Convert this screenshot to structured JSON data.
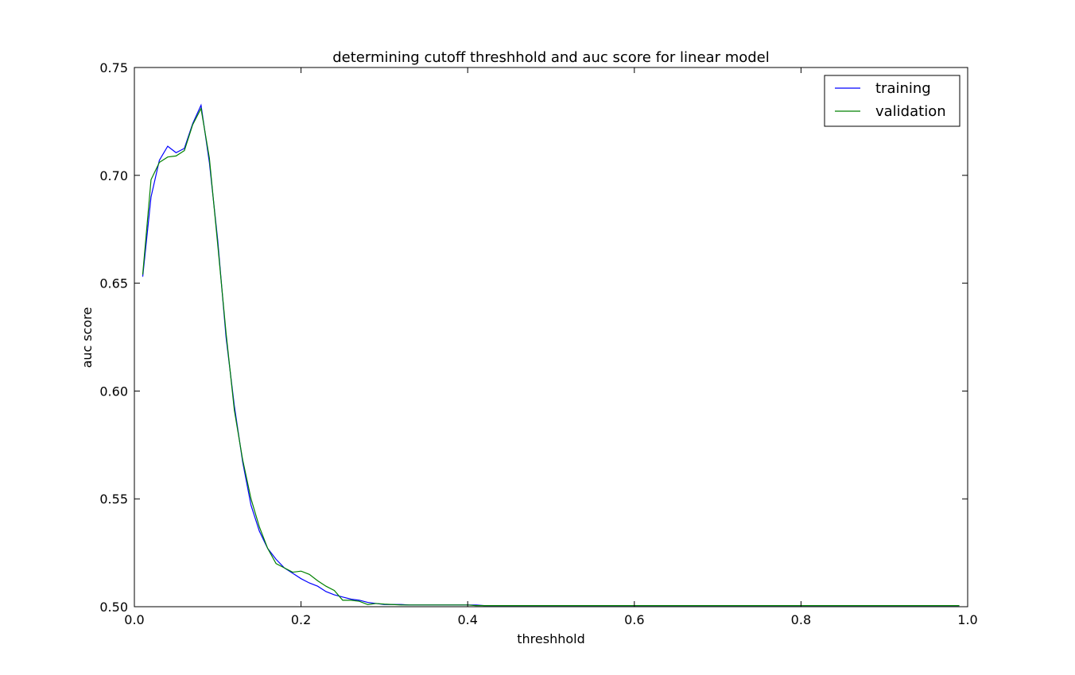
{
  "chart_data": {
    "type": "line",
    "title": "determining cutoff threshhold and auc score for linear model",
    "xlabel": "threshhold",
    "ylabel": "auc score",
    "xlim": [
      0.0,
      1.0
    ],
    "ylim": [
      0.5,
      0.75
    ],
    "xticks": [
      "0.0",
      "0.2",
      "0.4",
      "0.6",
      "0.8",
      "1.0"
    ],
    "yticks": [
      "0.50",
      "0.55",
      "0.60",
      "0.65",
      "0.70",
      "0.75"
    ],
    "grid": false,
    "legend_position": "top-right",
    "x": [
      0.01,
      0.02,
      0.03,
      0.04,
      0.05,
      0.06,
      0.07,
      0.08,
      0.09,
      0.1,
      0.11,
      0.12,
      0.13,
      0.14,
      0.15,
      0.16,
      0.17,
      0.18,
      0.19,
      0.2,
      0.21,
      0.22,
      0.23,
      0.24,
      0.25,
      0.26,
      0.27,
      0.28,
      0.29,
      0.3,
      0.31,
      0.32,
      0.33,
      0.34,
      0.35,
      0.36,
      0.37,
      0.38,
      0.39,
      0.4,
      0.41,
      0.42,
      0.43,
      0.44,
      0.45,
      0.46,
      0.47,
      0.48,
      0.49,
      0.5,
      0.51,
      0.52,
      0.53,
      0.54,
      0.55,
      0.56,
      0.57,
      0.58,
      0.59,
      0.6,
      0.61,
      0.62,
      0.63,
      0.64,
      0.65,
      0.66,
      0.67,
      0.68,
      0.69,
      0.7,
      0.71,
      0.72,
      0.73,
      0.74,
      0.75,
      0.76,
      0.77,
      0.78,
      0.79,
      0.8,
      0.81,
      0.82,
      0.83,
      0.84,
      0.85,
      0.86,
      0.87,
      0.88,
      0.89,
      0.9,
      0.91,
      0.92,
      0.93,
      0.94,
      0.95,
      0.96,
      0.97,
      0.98,
      0.99
    ],
    "series": [
      {
        "name": "training",
        "color": "#0000ff",
        "values": [
          0.653,
          0.69,
          0.707,
          0.7135,
          0.7105,
          0.7125,
          0.724,
          0.7325,
          0.706,
          0.67,
          0.625,
          0.593,
          0.567,
          0.547,
          0.535,
          0.527,
          0.522,
          0.518,
          0.5155,
          0.513,
          0.511,
          0.5095,
          0.507,
          0.5055,
          0.5045,
          0.5035,
          0.503,
          0.502,
          0.5015,
          0.501,
          0.501,
          0.501,
          0.5008,
          0.5008,
          0.5008,
          0.5008,
          0.5008,
          0.5008,
          0.5008,
          0.5008,
          0.5008,
          0.5005,
          0.5005,
          0.5005,
          0.5005,
          0.5005,
          0.5005,
          0.5005,
          0.5005,
          0.5005,
          0.5005,
          0.5005,
          0.5005,
          0.5005,
          0.5005,
          0.5005,
          0.5005,
          0.5005,
          0.5005,
          0.5005,
          0.5005,
          0.5005,
          0.5005,
          0.5005,
          0.5005,
          0.5005,
          0.5005,
          0.5005,
          0.5005,
          0.5005,
          0.5005,
          0.5005,
          0.5005,
          0.5005,
          0.5005,
          0.5005,
          0.5005,
          0.5005,
          0.5005,
          0.5005,
          0.5005,
          0.5005,
          0.5005,
          0.5005,
          0.5005,
          0.5005,
          0.5005,
          0.5005,
          0.5005,
          0.5005,
          0.5005,
          0.5005,
          0.5005,
          0.5005,
          0.5005,
          0.5005,
          0.5005,
          0.5005,
          0.5005
        ]
      },
      {
        "name": "validation",
        "color": "#008000",
        "values": [
          0.654,
          0.698,
          0.706,
          0.7085,
          0.709,
          0.7115,
          0.7235,
          0.731,
          0.708,
          0.668,
          0.627,
          0.591,
          0.568,
          0.55,
          0.537,
          0.527,
          0.52,
          0.518,
          0.516,
          0.5165,
          0.515,
          0.512,
          0.5095,
          0.5075,
          0.503,
          0.503,
          0.5025,
          0.501,
          0.5015,
          0.5012,
          0.501,
          0.5008,
          0.5008,
          0.5008,
          0.5008,
          0.5008,
          0.5008,
          0.5008,
          0.5008,
          0.5008,
          0.5005,
          0.5005,
          0.5005,
          0.5005,
          0.5005,
          0.5005,
          0.5005,
          0.5005,
          0.5005,
          0.5005,
          0.5005,
          0.5005,
          0.5005,
          0.5005,
          0.5005,
          0.5005,
          0.5005,
          0.5005,
          0.5005,
          0.5005,
          0.5005,
          0.5005,
          0.5005,
          0.5005,
          0.5005,
          0.5005,
          0.5005,
          0.5005,
          0.5005,
          0.5005,
          0.5005,
          0.5005,
          0.5005,
          0.5005,
          0.5005,
          0.5005,
          0.5005,
          0.5005,
          0.5005,
          0.5005,
          0.5005,
          0.5005,
          0.5005,
          0.5005,
          0.5005,
          0.5005,
          0.5005,
          0.5005,
          0.5005,
          0.5005,
          0.5005,
          0.5005,
          0.5005,
          0.5005,
          0.5005,
          0.5005,
          0.5005,
          0.5005,
          0.5005
        ]
      }
    ]
  }
}
